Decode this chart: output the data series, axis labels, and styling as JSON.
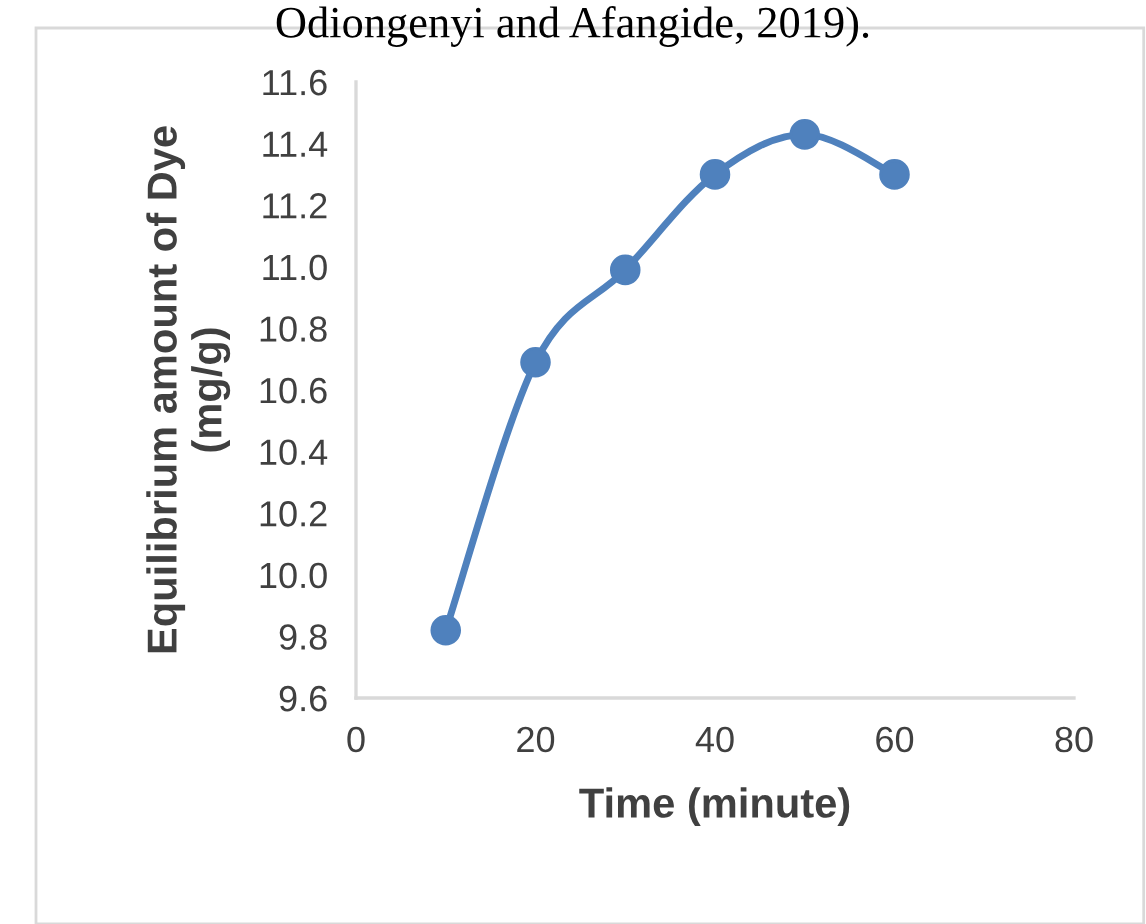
{
  "chart_data": {
    "type": "line",
    "xlabel": "Time (minute)",
    "ylabel": "Equilibrium amount of Dye\n(mg/g)",
    "annotations": [
      "Odiongenyi and Afangide, 2019)."
    ],
    "x": [
      10,
      20,
      30,
      40,
      50,
      60
    ],
    "series": [
      {
        "color": "#4f81bd",
        "values": [
          9.82,
          10.69,
          10.99,
          11.3,
          11.43,
          11.3
        ]
      }
    ],
    "xlim": [
      0,
      80
    ],
    "xticks": [
      0,
      20,
      40,
      60,
      80
    ],
    "ylim": [
      9.6,
      11.6
    ],
    "yticks": [
      9.6,
      9.8,
      {
        "value": 10.0,
        "label": "10.0"
      },
      10.2,
      10.4,
      10.6,
      10.8,
      {
        "value": 11.0,
        "label": "11.0"
      },
      11.2,
      11.4,
      11.6
    ],
    "marker": "circle",
    "line_style": "solid",
    "grid": false,
    "legend": false
  }
}
